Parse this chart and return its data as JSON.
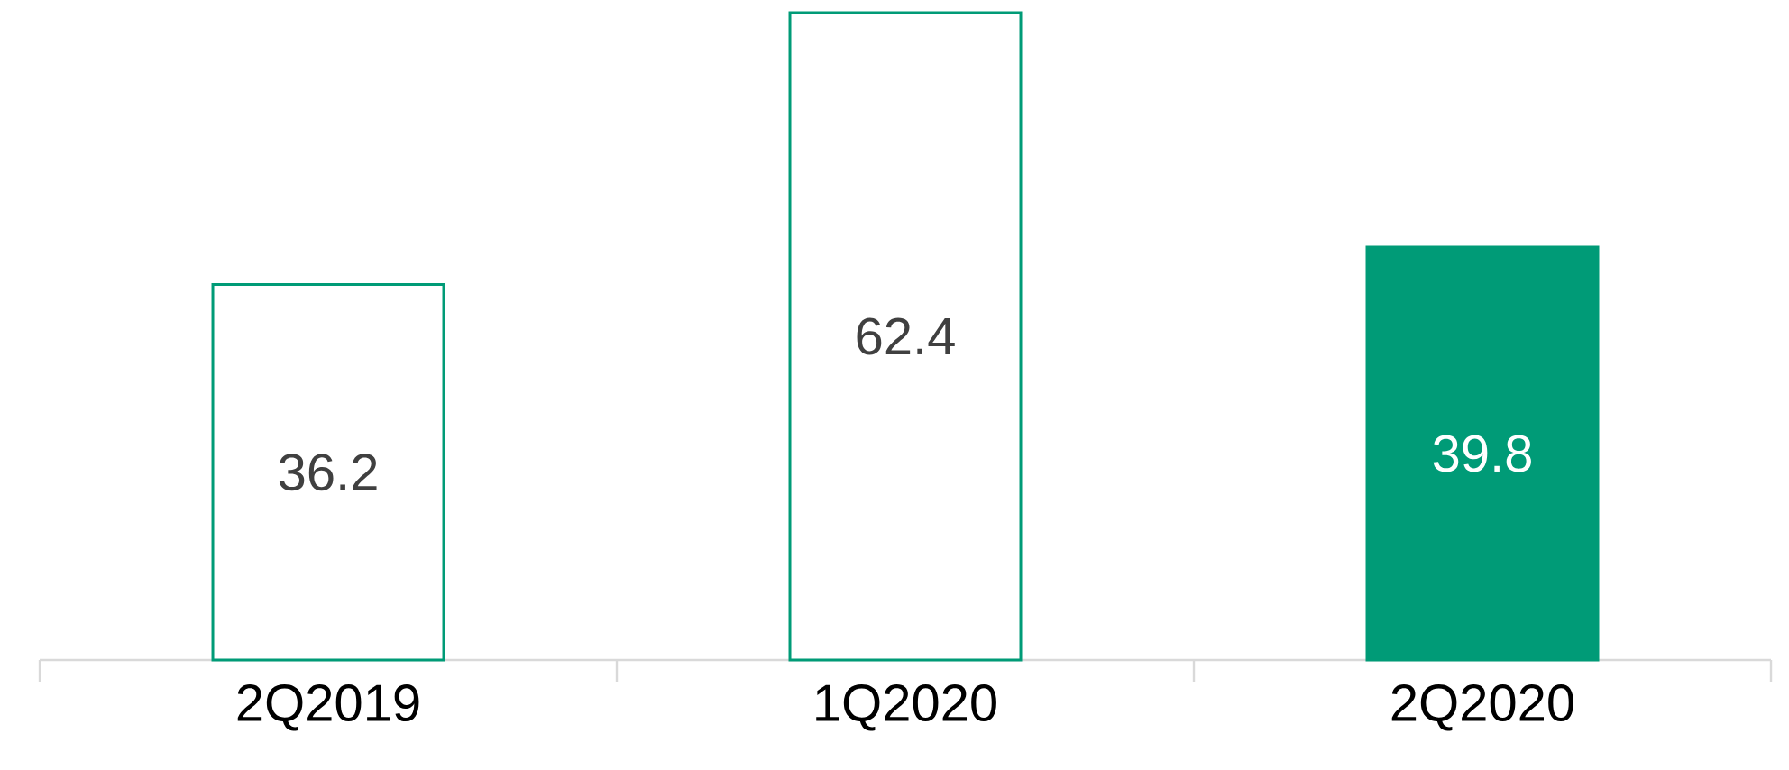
{
  "chart_data": {
    "type": "bar",
    "categories": [
      "2Q2019",
      "1Q2020",
      "2Q2020"
    ],
    "values": [
      36.2,
      62.4,
      39.8
    ],
    "color": "#009b77",
    "colors": [
      "#ffffff",
      "#ffffff",
      "#009b77"
    ],
    "data_labels": true
  }
}
